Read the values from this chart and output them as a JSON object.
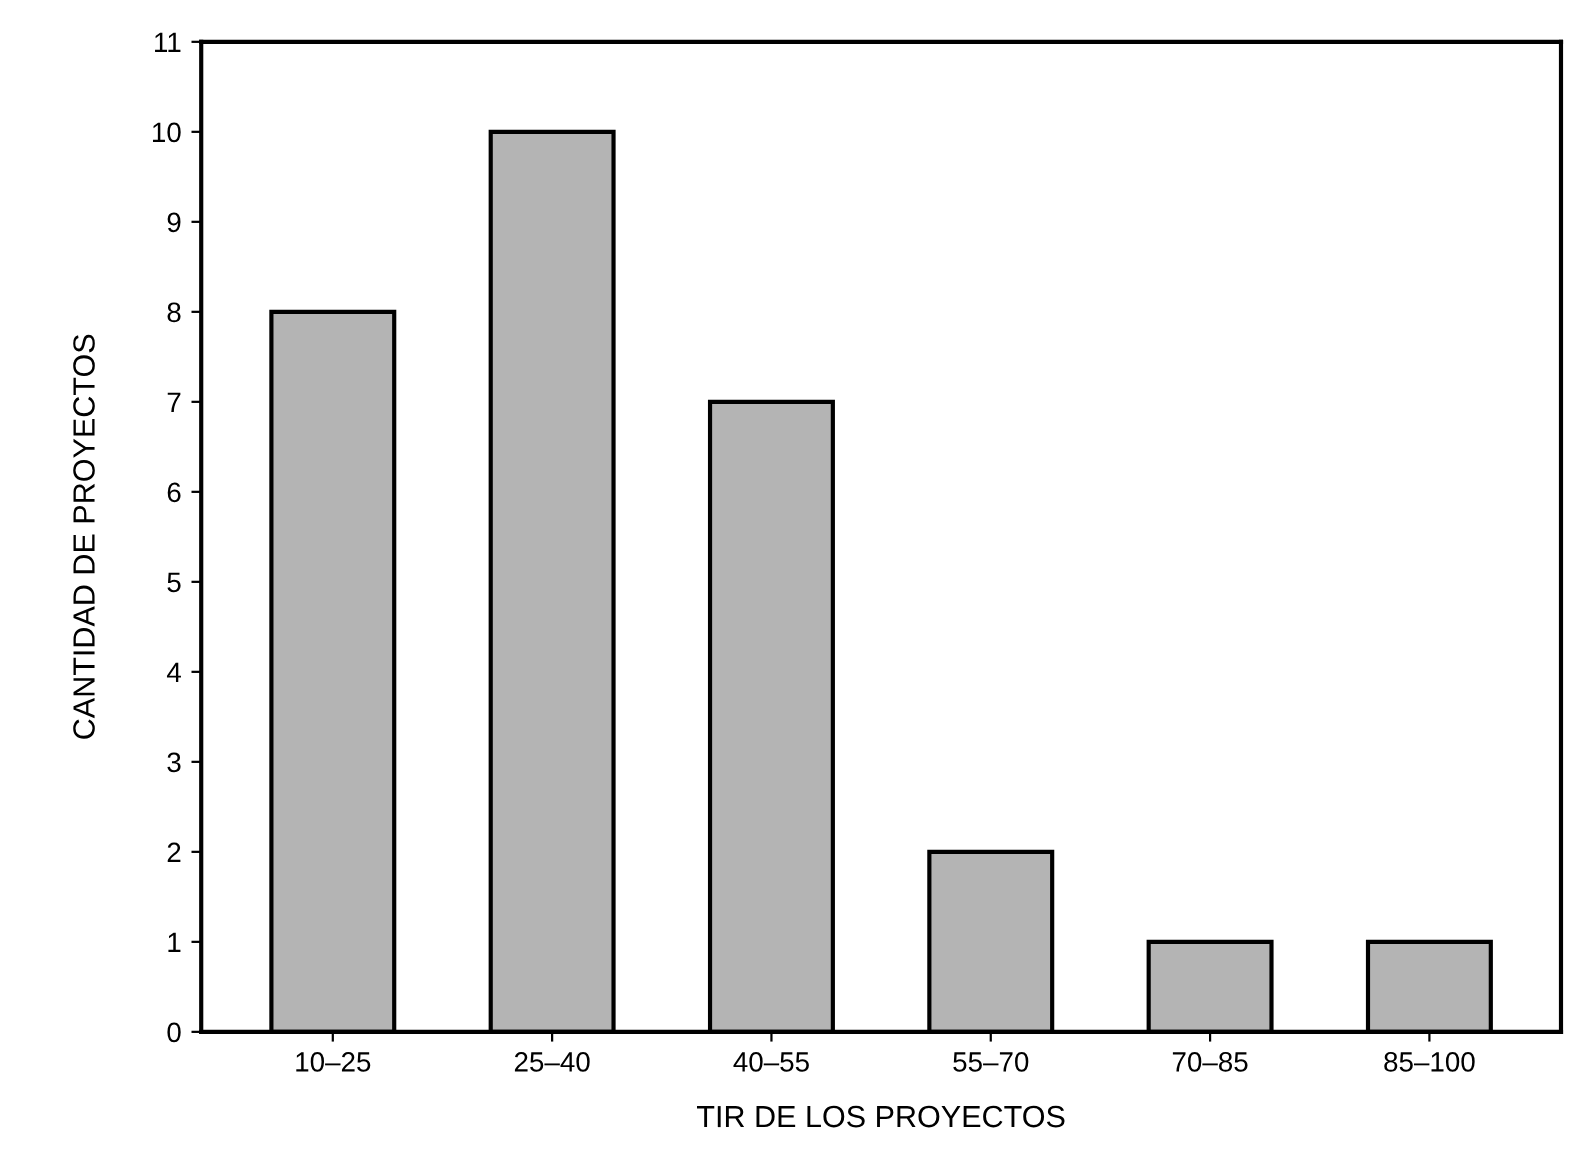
{
  "chart_data": {
    "type": "bar",
    "xlabel": "TIR DE LOS PROYECTOS",
    "ylabel": "CANTIDAD DE PROYECTOS",
    "categories": [
      "10–25",
      "25–40",
      "40–55",
      "55–70",
      "70–85",
      "85–100"
    ],
    "values": [
      8,
      10,
      7,
      2,
      1,
      1
    ],
    "color": "#b4b4b4",
    "ylim": [
      0,
      11
    ],
    "yticks": [
      0,
      1,
      2,
      3,
      4,
      5,
      6,
      7,
      8,
      9,
      10,
      11
    ],
    "grid": false
  }
}
